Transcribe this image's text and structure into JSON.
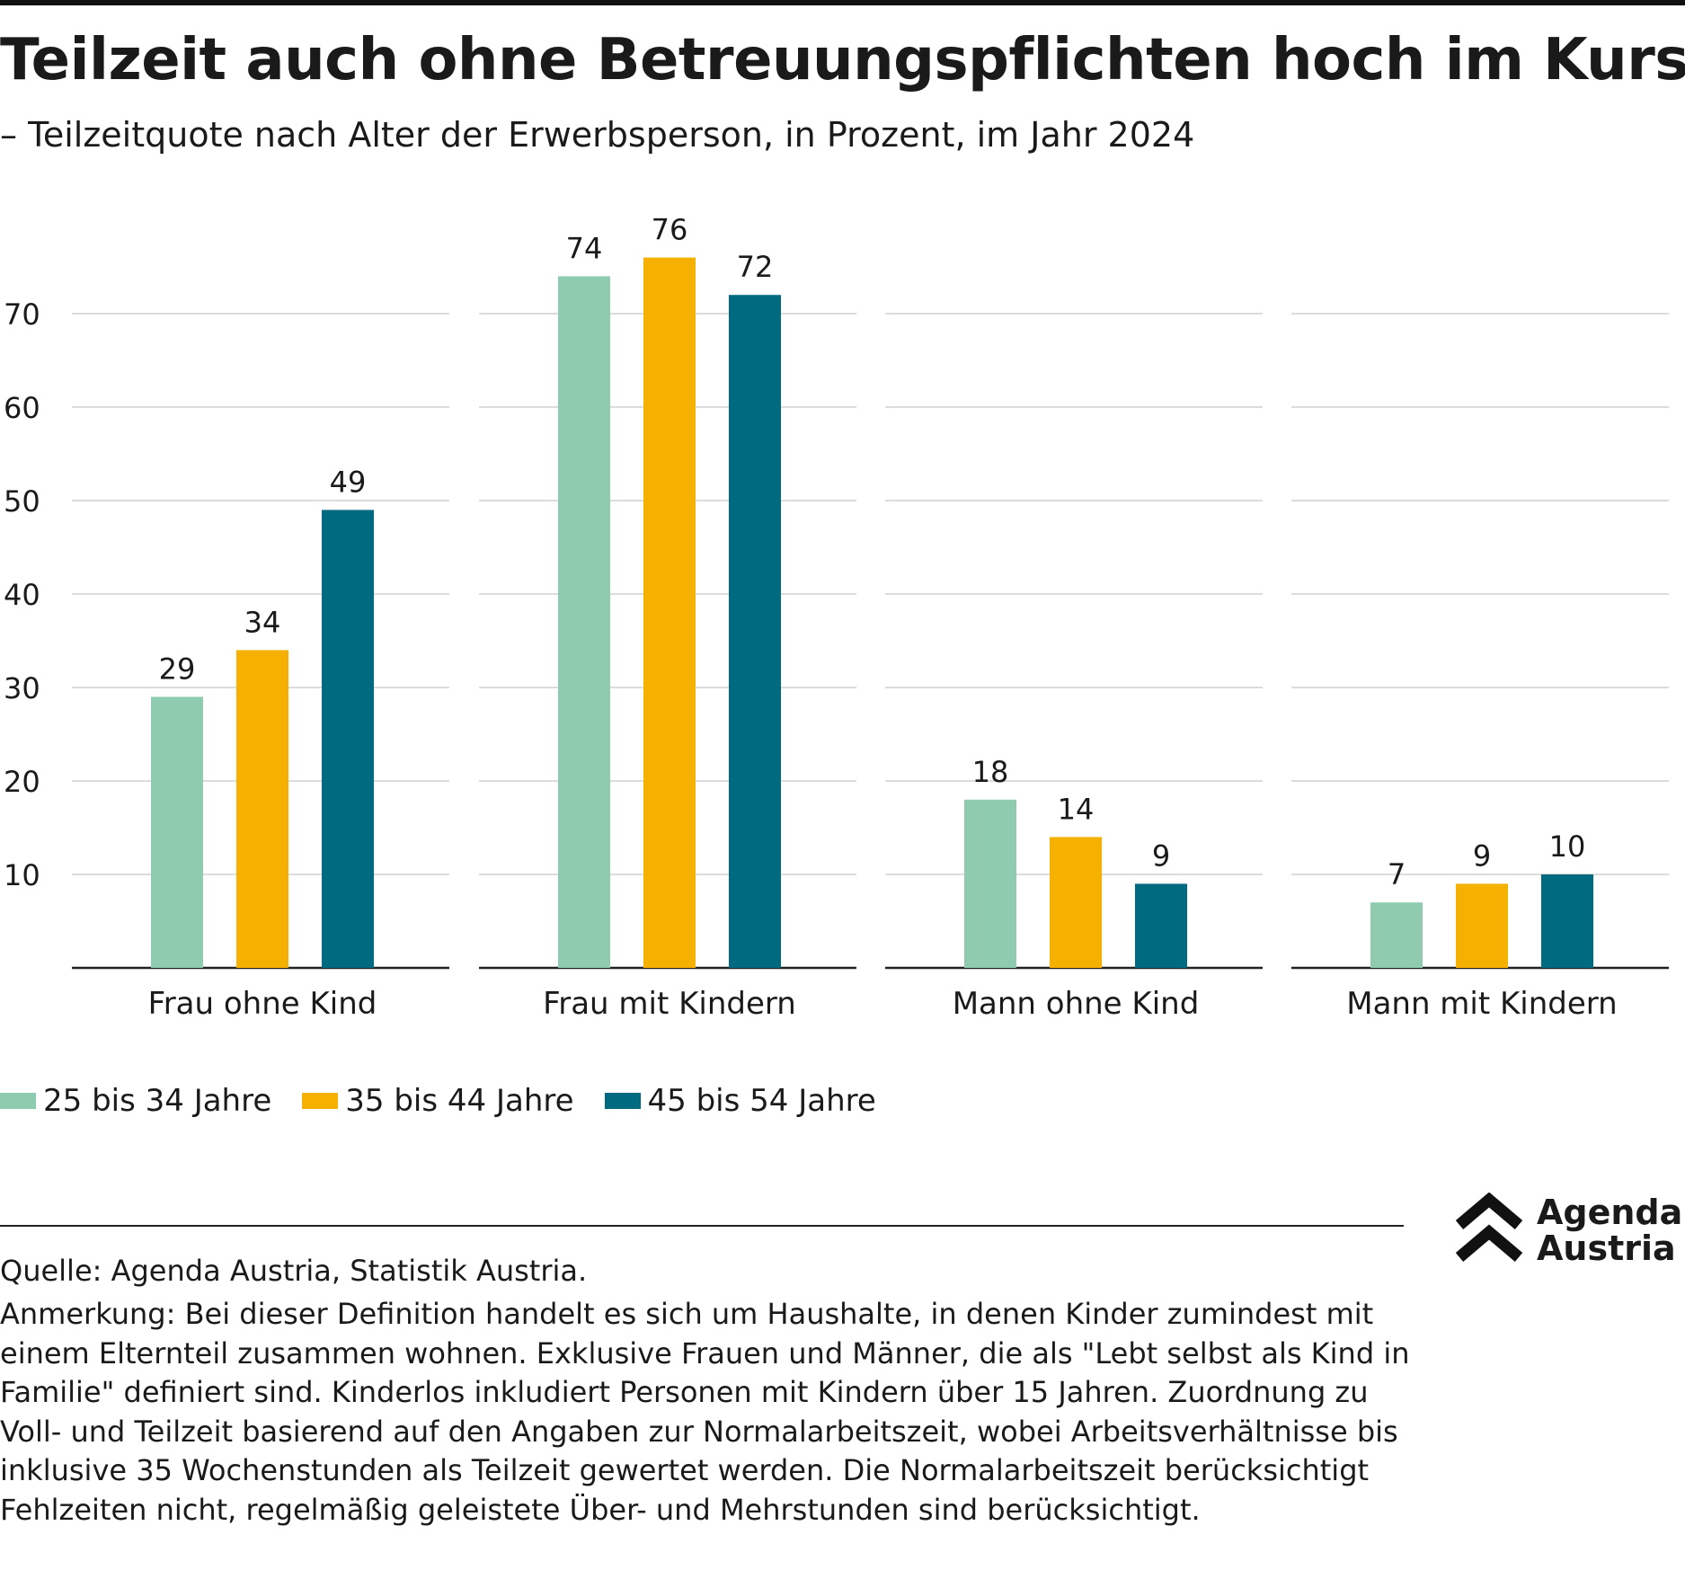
{
  "title": "Teilzeit auch ohne Betreuungspflichten hoch im Kurs",
  "subtitle": "– Teilzeitquote nach Alter der Erwerbsperson, in Prozent, im Jahr 2024",
  "chart_data": {
    "type": "bar",
    "categories": [
      "Frau ohne Kind",
      "Frau mit Kindern",
      "Mann ohne Kind",
      "Mann mit Kindern"
    ],
    "series": [
      {
        "name": "25 bis 34 Jahre",
        "color": "#8ecbaf",
        "values": [
          29,
          74,
          18,
          7
        ]
      },
      {
        "name": "35 bis 44 Jahre",
        "color": "#f5b000",
        "values": [
          34,
          76,
          14,
          9
        ]
      },
      {
        "name": "45 bis 54 Jahre",
        "color": "#006b80",
        "values": [
          49,
          72,
          9,
          10
        ]
      }
    ],
    "value_labels": [
      [
        "29",
        "74",
        "18",
        "7"
      ],
      [
        "34",
        "76",
        "14",
        "9"
      ],
      [
        "49",
        "72",
        "9",
        "10"
      ]
    ],
    "yticks": [
      "10",
      "20",
      "30",
      "40",
      "50",
      "60",
      "70"
    ],
    "ylim": [
      0,
      80
    ],
    "grid": true,
    "legend_position": "bottom-left"
  },
  "legend": [
    {
      "label": "25 bis 34 Jahre",
      "color": "#8ecbaf"
    },
    {
      "label": "35 bis 44 Jahre",
      "color": "#f5b000"
    },
    {
      "label": "45 bis 54 Jahre",
      "color": "#006b80"
    }
  ],
  "footer": {
    "source": "Quelle: Agenda Austria, Statistik Austria.",
    "note": "Anmerkung: Bei dieser Definition handelt es sich um Haushalte, in denen Kinder zumindest mit einem Elternteil zusammen wohnen. Exklusive Frauen und Männer, die als \"Lebt selbst als Kind in Familie\" definiert sind. Kinderlos inkludiert Personen mit Kindern über 15 Jahren. Zuordnung zu Voll- und Teilzeit basierend auf den Angaben zur Normalarbeitszeit, wobei Arbeitsverhältnisse bis inklusive 35 Wochenstunden als Teilzeit gewertet werden. Die Normalarbeitszeit berücksichtigt Fehlzeiten nicht, regelmäßig geleistete Über- und Mehrstunden sind berücksichtigt."
  },
  "logo": {
    "line1": "Agenda",
    "line2": "Austria",
    "icon": "double-chevron-up-icon"
  }
}
